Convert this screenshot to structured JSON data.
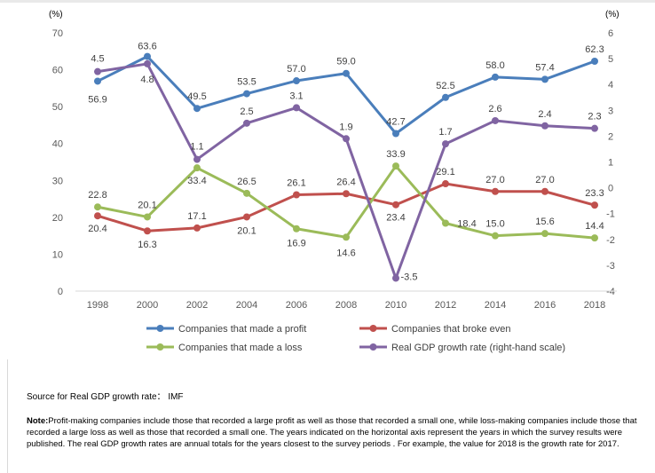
{
  "chart_data": {
    "type": "line",
    "left_unit": "(%)",
    "right_unit": "(%)",
    "x": [
      "1998",
      "2000",
      "2002",
      "2004",
      "2006",
      "2008",
      "2010",
      "2012",
      "2014",
      "2016",
      "2018"
    ],
    "y_left_ticks": [
      "0",
      "10",
      "20",
      "30",
      "40",
      "50",
      "60",
      "70"
    ],
    "y_left_range": [
      0,
      70
    ],
    "y_right_ticks": [
      "-4",
      "-3",
      "-2",
      "-1",
      "0",
      "1",
      "2",
      "3",
      "4",
      "5",
      "6"
    ],
    "y_right_range": [
      -4,
      6
    ],
    "grid": false,
    "legend_position": "bottom",
    "series": [
      {
        "name": "Companies that made a profit",
        "axis": "left",
        "color": "#4a7ebb",
        "values": [
          56.9,
          63.6,
          49.5,
          53.5,
          57.0,
          59.0,
          42.7,
          52.5,
          58.0,
          57.4,
          62.3
        ],
        "labels": [
          "56.9",
          "63.6",
          "49.5",
          "53.5",
          "57.0",
          "59.0",
          "42.7",
          "52.5",
          "58.0",
          "57.4",
          "62.3"
        ]
      },
      {
        "name": "Companies that broke even",
        "axis": "left",
        "color": "#c0504d",
        "values": [
          20.4,
          16.3,
          17.1,
          20.1,
          26.1,
          26.4,
          23.4,
          29.1,
          27.0,
          27.0,
          23.3
        ],
        "labels": [
          "20.4",
          "16.3",
          "17.1",
          "20.1",
          "26.1",
          "26.4",
          "23.4",
          "29.1",
          "27.0",
          "27.0",
          "23.3"
        ]
      },
      {
        "name": "Companies that made a loss",
        "axis": "left",
        "color": "#9bbb59",
        "values": [
          22.8,
          20.1,
          33.4,
          26.5,
          16.9,
          14.6,
          33.9,
          18.4,
          15.0,
          15.6,
          14.4
        ],
        "labels": [
          "22.8",
          "20.1",
          "33.4",
          "26.5",
          "16.9",
          "14.6",
          "33.9",
          "18.4",
          "15.0",
          "15.6",
          "14.4"
        ]
      },
      {
        "name": "Real GDP growth rate (right-hand scale)",
        "axis": "right",
        "color": "#8064a2",
        "values": [
          4.5,
          4.8,
          1.1,
          2.5,
          3.1,
          1.9,
          -3.5,
          1.7,
          2.6,
          2.4,
          2.3
        ],
        "labels": [
          "4.5",
          "4.8",
          "1.1",
          "2.5",
          "3.1",
          "1.9",
          "-3.5",
          "1.7",
          "2.6",
          "2.4",
          "2.3"
        ]
      }
    ]
  },
  "footer": {
    "source": "Source for Real GDP growth rate： IMF",
    "note_label": "Note:",
    "note_text": "Profit-making companies include those that recorded a large profit as well as those that recorded a small one, while loss-making companies include those that recorded a large loss as well as those that recorded a small one. The years indicated on the horizontal axis represent the years in which the survey results were published. The real GDP growth rates are annual totals for the years closest to the survey periods . For example, the value for 2018 is the growth rate for 2017."
  }
}
